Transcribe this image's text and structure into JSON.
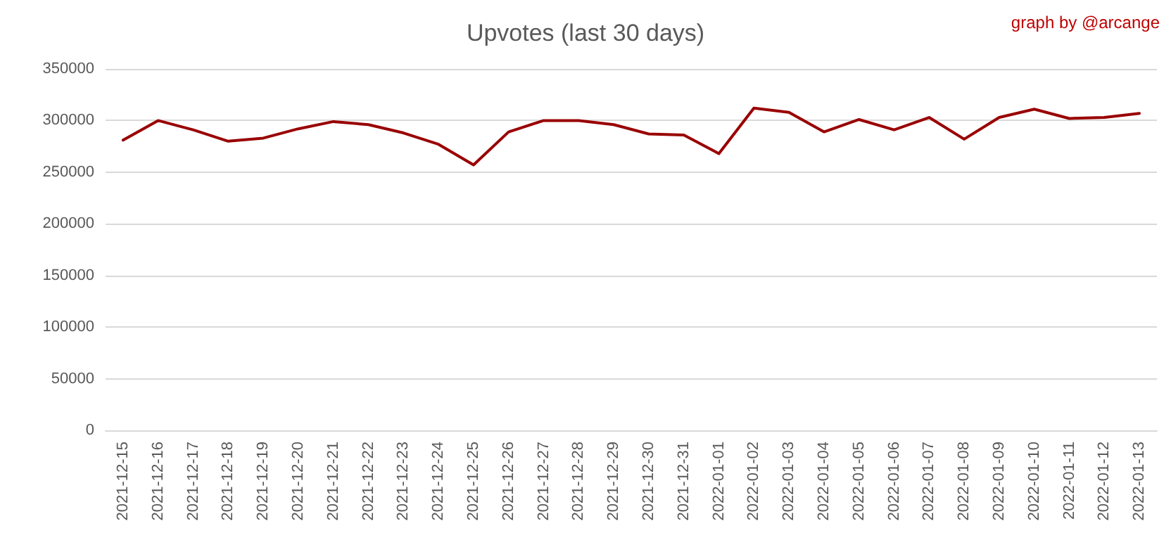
{
  "chart_data": {
    "type": "line",
    "title": "Upvotes (last 30 days)",
    "annotations": [
      "graph by @arcange"
    ],
    "categories": [
      "2021-12-15",
      "2021-12-16",
      "2021-12-17",
      "2021-12-18",
      "2021-12-19",
      "2021-12-20",
      "2021-12-21",
      "2021-12-22",
      "2021-12-23",
      "2021-12-24",
      "2021-12-25",
      "2021-12-26",
      "2021-12-27",
      "2021-12-28",
      "2021-12-29",
      "2021-12-30",
      "2021-12-31",
      "2022-01-01",
      "2022-01-02",
      "2022-01-03",
      "2022-01-04",
      "2022-01-05",
      "2022-01-06",
      "2022-01-07",
      "2022-01-08",
      "2022-01-09",
      "2022-01-10",
      "2022-01-11",
      "2022-01-12",
      "2022-01-13"
    ],
    "series": [
      {
        "color": "#990000",
        "values": [
          281000,
          300000,
          291000,
          280000,
          283000,
          292000,
          299000,
          296000,
          288000,
          277000,
          257000,
          289000,
          300000,
          300000,
          296000,
          287000,
          286000,
          268000,
          312000,
          308000,
          289000,
          301000,
          291000,
          303000,
          282000,
          303000,
          311000,
          302000,
          303000,
          307000
        ]
      }
    ],
    "ylim": [
      0,
      350000
    ],
    "yticks": [
      0,
      50000,
      100000,
      150000,
      200000,
      250000,
      300000,
      350000
    ],
    "grid": "y",
    "marker": "none",
    "line_style": "solid"
  }
}
